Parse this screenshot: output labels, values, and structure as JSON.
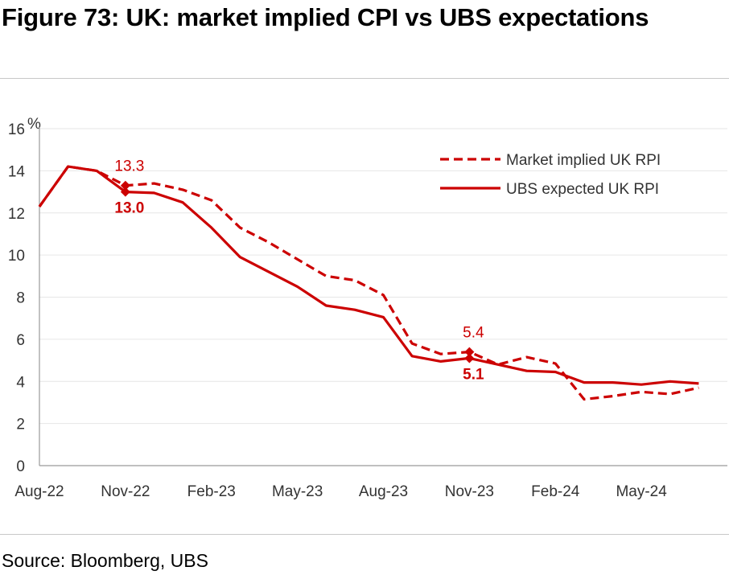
{
  "header": {
    "title": "Figure 73: UK: market implied CPI vs UBS expectations"
  },
  "footer": {
    "source": "Source: Bloomberg, UBS"
  },
  "colors": {
    "series": "#cc0000",
    "axis": "#9a9a9a",
    "grid": "#e6e6e6",
    "text": "#333333"
  },
  "chart_data": {
    "type": "line",
    "title": "Figure 73: UK: market implied CPI vs UBS expectations",
    "ylabel": "%",
    "xlabel": "",
    "ylim": [
      0,
      16
    ],
    "yticks": [
      0,
      2,
      4,
      6,
      8,
      10,
      12,
      14,
      16
    ],
    "xlim": [
      "2022-08",
      "2024-08"
    ],
    "xticks": [
      {
        "date": "2022-08",
        "label": "Aug-22"
      },
      {
        "date": "2022-11",
        "label": "Nov-22"
      },
      {
        "date": "2023-02",
        "label": "Feb-23"
      },
      {
        "date": "2023-05",
        "label": "May-23"
      },
      {
        "date": "2023-08",
        "label": "Aug-23"
      },
      {
        "date": "2023-11",
        "label": "Nov-23"
      },
      {
        "date": "2024-02",
        "label": "Feb-24"
      },
      {
        "date": "2024-05",
        "label": "May-24"
      }
    ],
    "grid": true,
    "legend_position": "top-right",
    "series": [
      {
        "name": "Market implied UK RPI",
        "style": "dashed",
        "points": [
          {
            "date": "2022-08",
            "value": 12.3
          },
          {
            "date": "2022-09",
            "value": 14.2
          },
          {
            "date": "2022-10",
            "value": 14.0
          },
          {
            "date": "2022-11",
            "value": 13.3
          },
          {
            "date": "2022-12",
            "value": 13.4
          },
          {
            "date": "2023-01",
            "value": 13.1
          },
          {
            "date": "2023-02",
            "value": 12.6
          },
          {
            "date": "2023-03",
            "value": 11.3
          },
          {
            "date": "2023-04",
            "value": 10.6
          },
          {
            "date": "2023-05",
            "value": 9.8
          },
          {
            "date": "2023-06",
            "value": 9.0
          },
          {
            "date": "2023-07",
            "value": 8.8
          },
          {
            "date": "2023-08",
            "value": 8.1
          },
          {
            "date": "2023-09",
            "value": 5.8
          },
          {
            "date": "2023-10",
            "value": 5.3
          },
          {
            "date": "2023-11",
            "value": 5.4
          },
          {
            "date": "2023-12",
            "value": 4.8
          },
          {
            "date": "2024-01",
            "value": 5.15
          },
          {
            "date": "2024-02",
            "value": 4.85
          },
          {
            "date": "2024-03",
            "value": 3.15
          },
          {
            "date": "2024-04",
            "value": 3.3
          },
          {
            "date": "2024-05",
            "value": 3.5
          },
          {
            "date": "2024-06",
            "value": 3.4
          },
          {
            "date": "2024-07",
            "value": 3.7
          }
        ]
      },
      {
        "name": "UBS expected UK RPI",
        "style": "solid",
        "points": [
          {
            "date": "2022-08",
            "value": 12.3
          },
          {
            "date": "2022-09",
            "value": 14.2
          },
          {
            "date": "2022-10",
            "value": 14.0
          },
          {
            "date": "2022-11",
            "value": 13.0
          },
          {
            "date": "2022-12",
            "value": 12.95
          },
          {
            "date": "2023-01",
            "value": 12.5
          },
          {
            "date": "2023-02",
            "value": 11.3
          },
          {
            "date": "2023-03",
            "value": 9.9
          },
          {
            "date": "2023-04",
            "value": 9.2
          },
          {
            "date": "2023-05",
            "value": 8.5
          },
          {
            "date": "2023-06",
            "value": 7.6
          },
          {
            "date": "2023-07",
            "value": 7.4
          },
          {
            "date": "2023-08",
            "value": 7.05
          },
          {
            "date": "2023-09",
            "value": 5.2
          },
          {
            "date": "2023-10",
            "value": 4.95
          },
          {
            "date": "2023-11",
            "value": 5.1
          },
          {
            "date": "2023-12",
            "value": 4.8
          },
          {
            "date": "2024-01",
            "value": 4.5
          },
          {
            "date": "2024-02",
            "value": 4.45
          },
          {
            "date": "2024-03",
            "value": 3.95
          },
          {
            "date": "2024-04",
            "value": 3.95
          },
          {
            "date": "2024-05",
            "value": 3.85
          },
          {
            "date": "2024-06",
            "value": 4.0
          },
          {
            "date": "2024-07",
            "value": 3.9
          }
        ]
      }
    ],
    "annotations": [
      {
        "date": "2022-11",
        "value": 13.3,
        "text": "13.3",
        "series": "Market implied UK RPI",
        "placement": "above",
        "bold": false
      },
      {
        "date": "2022-11",
        "value": 13.0,
        "text": "13.0",
        "series": "UBS expected UK RPI",
        "placement": "below",
        "bold": true
      },
      {
        "date": "2023-11",
        "value": 5.4,
        "text": "5.4",
        "series": "Market implied UK RPI",
        "placement": "above",
        "bold": false
      },
      {
        "date": "2023-11",
        "value": 5.1,
        "text": "5.1",
        "series": "UBS expected UK RPI",
        "placement": "below",
        "bold": true
      }
    ]
  }
}
